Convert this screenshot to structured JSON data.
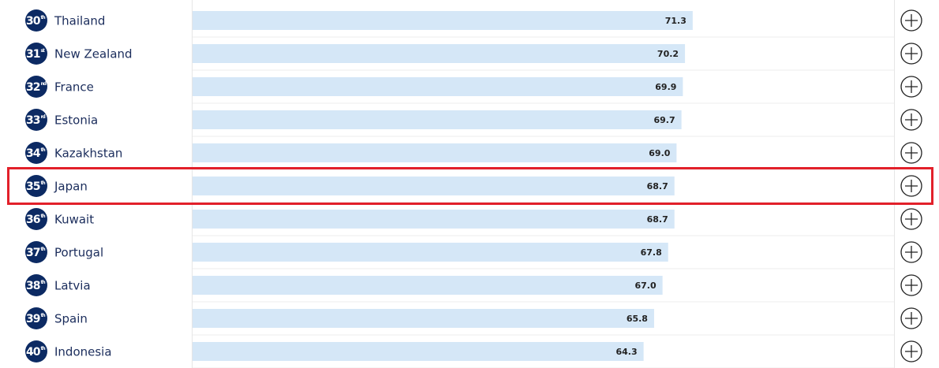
{
  "rows": [
    {
      "rank": 30,
      "suffix": "th",
      "country": "Thailand",
      "score": 71.3
    },
    {
      "rank": 31,
      "suffix": "st",
      "country": "New Zealand",
      "score": 70.2
    },
    {
      "rank": 32,
      "suffix": "nd",
      "country": "France",
      "score": 69.9
    },
    {
      "rank": 33,
      "suffix": "rd",
      "country": "Estonia",
      "score": 69.7
    },
    {
      "rank": 34,
      "suffix": "th",
      "country": "Kazakhstan",
      "score": 69,
      "score_label": "69.0"
    },
    {
      "rank": 35,
      "suffix": "th",
      "country": "Japan",
      "score": 68.7,
      "highlighted": true
    },
    {
      "rank": 36,
      "suffix": "th",
      "country": "Kuwait",
      "score": 68.7
    },
    {
      "rank": 37,
      "suffix": "th",
      "country": "Portugal",
      "score": 67.8
    },
    {
      "rank": 38,
      "suffix": "th",
      "country": "Latvia",
      "score": 67,
      "score_label": "67.0"
    },
    {
      "rank": 39,
      "suffix": "th",
      "country": "Spain",
      "score": 65.8
    },
    {
      "rank": 40,
      "suffix": "th",
      "country": "Indonesia",
      "score": 64.3
    }
  ]
}
